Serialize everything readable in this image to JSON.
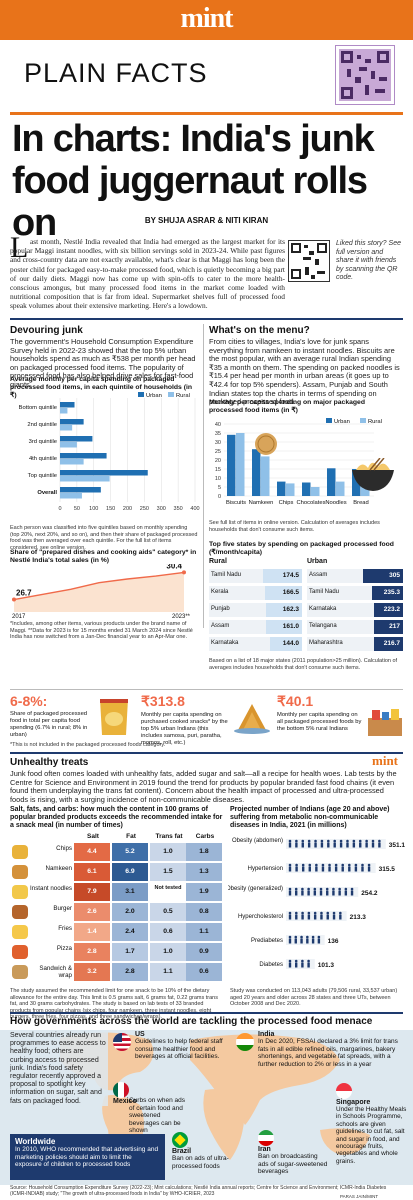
{
  "header": {
    "brand": "mint",
    "section": "PLAIN FACTS",
    "title": "In charts: India's junk food juggernaut rolls on",
    "byline": "BY SHUJA ASRAR & NITI KIRAN",
    "qr_note": "Liked this story? See full version and share it with friends by scanning the QR code.",
    "intro_dropcap": "L",
    "intro_rest": "ast month, Nestlé India revealed that India had emerged as the largest market for its popular Maggi instant noodles, with six billion servings sold in 2023-24. While past figures and cross-country data are not exactly available, what's clear is that Maggi has long been the poster child for packaged easy-to-make processed food, which is quietly becoming a big part of our daily diets. Maggi now has come up with spin-offs to cater to the more health-conscious amongus, but many processed food items in the market come loaded with nutritional composition that is far from ideal. Supermarket shelves full of processed food speak volumes about their extensive marketing. Here's a lowdown."
  },
  "colors": {
    "brand": "#e8731a",
    "pink": "#f06a4a",
    "navy": "#1e3a6e",
    "urban": "#1f6fb2",
    "rural": "#8fc0e8",
    "orange_bar": "#f7a530",
    "map_land": "#f4c9a0",
    "map_water": "#dde8ef"
  },
  "devouring": {
    "heading": "Devouring junk",
    "text": "The government's Household Consumption Expenditure Survey held in 2022-23 showed that the top 5% urban households spend as much as ₹538 per month per head on packaged processed food items. The popularity of processed food has also helped drive sales for fast-food giants.",
    "chart_title": "Average monthly per capita spending on packaged processed food items, in each quintile of households (in ₹)",
    "note": "Each person was classified into five quintiles based on monthly spending (top 20%, next 20%, and so on), and then their share of packaged processed food was then averaged over each quintile. For the full list of items considered, see online version."
  },
  "nestle": {
    "chart_title": "Share of \"prepared dishes and cooking aids\" category* in Nestlé India's total sales (in %)",
    "note": "*Includes, among other items, various products under the brand name of Maggi. **Data for 2023 is for 15 months ended 31 March 2024 since Nestlé India has now switched from a Jan-Dec financial year to an Apr-Mar one.",
    "x_start": "2017",
    "x_end": "2023**",
    "v_start": "26.7",
    "v_end": "30.4"
  },
  "menu": {
    "heading": "What's on the menu?",
    "text": "From cities to villages, India's love for junk spans everything from namkeen to instant noodles. Biscuits are the most popular, with an average rural Indian spending ₹35 a month on them. The spending on packed noodles is ₹15.4 per head per month in urban areas (it goes up to ₹42.4 for top 5% spenders). Assam, Punjab and South Indian states top the charts in terms of spending on packaged processed food.",
    "chart_title": "Monthly per capita spending on major packaged processed food items (in ₹)",
    "note": "See full list of items in online version. Calculation of averages includes households that don't consume such items."
  },
  "states": {
    "title": "Top five states by spending on packaged processed food (₹/month/capita)",
    "rural_label": "Rural",
    "urban_label": "Urban",
    "rural": [
      {
        "state": "Tamil Nadu",
        "value": "174.5"
      },
      {
        "state": "Kerala",
        "value": "166.5"
      },
      {
        "state": "Punjab",
        "value": "162.3"
      },
      {
        "state": "Assam",
        "value": "161.0"
      },
      {
        "state": "Karnataka",
        "value": "144.0"
      }
    ],
    "urban": [
      {
        "state": "Assam",
        "value": "305"
      },
      {
        "state": "Tamil Nadu",
        "value": "235.3"
      },
      {
        "state": "Karnataka",
        "value": "223.2"
      },
      {
        "state": "Telangana",
        "value": "217"
      },
      {
        "state": "Maharashtra",
        "value": "216.7"
      }
    ],
    "note": "Based on a list of 18 major states (2011 population>25 million). Calculation of averages includes households that don't consume such items."
  },
  "facts": [
    {
      "big": "6-8%:",
      "text": "Share of packaged processed food in total per capita food spending (6.7% in rural; 8% in urban)"
    },
    {
      "big": "₹313.8",
      "text": "Monthly per capita spending on purchased cooked snacks* by the top 5% urban Indians (this includes samosa, puri, paratha, momos, roll, etc.)"
    },
    {
      "big": "₹40.1",
      "text": "Monthly per capita spending on all packaged processed foods by the bottom 5% rural Indians"
    }
  ],
  "facts_note": "*This is not included in the packaged processed foods category.",
  "treats": {
    "heading": "Unhealthy treats",
    "brand": "mint",
    "text": "Junk food often comes loaded with unhealthy fats, added sugar and salt—all a recipe for health woes. Lab tests by the Centre for Science and Environment in 2019 found the trend for products by popular branded fast food chains (it even found them underplaying the trans fat content). Concern about the health impact of processed and ultra-processed foods is rising, with a surging incidence of non-communicable diseases."
  },
  "salt": {
    "title": "Salt, fats, and carbs: how much the content in 100 grams of popular branded products exceeds the recommended intake for a snack meal (in number of times)",
    "headers": [
      "Salt",
      "Fat",
      "Trans fat",
      "Carbs"
    ],
    "rows": [
      {
        "item": "Chips",
        "v": [
          "4.4",
          "5.2",
          "1.0",
          "1.8"
        ]
      },
      {
        "item": "Namkeen",
        "v": [
          "6.1",
          "6.9",
          "1.5",
          "1.3"
        ]
      },
      {
        "item": "Instant noodles",
        "v": [
          "7.9",
          "3.1",
          "Not tested",
          "1.9"
        ]
      },
      {
        "item": "Burger",
        "v": [
          "2.6",
          "2.0",
          "0.5",
          "0.8"
        ]
      },
      {
        "item": "Fries",
        "v": [
          "1.4",
          "2.4",
          "0.6",
          "1.1"
        ]
      },
      {
        "item": "Pizza",
        "v": [
          "2.8",
          "1.7",
          "1.0",
          "0.9"
        ]
      },
      {
        "item": "Sandwich & wrap",
        "v": [
          "3.2",
          "2.8",
          "1.1",
          "0.6"
        ]
      }
    ],
    "note": "The study assumed the recommended limit for one snack to be 10% of the dietary allowance for the entire day. This limit is 0.5 grams salt, 6 grams fat, 0.22 grams trans fat, and 30 grams carbohydrates. The study is based on lab tests of 33 branded products from popular chains (six chips, four namkeen, three instant noodles, eight burgers, three fries, four pizzas, and three sandwiches/wraps)."
  },
  "ncd": {
    "title": "Projected number of Indians (age 20 and above) suffering from metabolic non-communicable diseases in India, 2021 (in millions)",
    "note": "Study was conducted on 113,043 adults (79,506 rural, 33,537 urban) aged 20 years and older across 28 states and three UTs, between October 2008 and Dec 2020."
  },
  "world": {
    "heading": "How governments across the world are tackling the processed food menace",
    "intro": "Several countries already run programmes to ease access to healthy food; others are curbing access to processed junk. India's food safety regulator recently approved a proposal to spotlight key information on sugar, salt and fats on packaged food.",
    "countries": [
      {
        "name": "US",
        "text": "Guidelines to help federal staff consume healthier food and beverages at official facilities."
      },
      {
        "name": "India",
        "text": "In Dec 2020, FSSAI declared a 3% limit for trans fats in all edible refined oils, margarines, bakery shortenings, and vegetable fat spreads, with a further reduction to 2% or less in a year"
      },
      {
        "name": "Mexico",
        "text": "Curbs on when ads of certain food and sweetened beverages can be shown"
      },
      {
        "name": "Singapore",
        "text": "Under the Healthy Meals in Schools Programme, schools are given guidelines to cut fat, salt and sugar in food, and encourage fruits, vegetables and whole grains."
      },
      {
        "name": "Brazil",
        "text": "Ban on ads of ultra-processed foods"
      },
      {
        "name": "Iran",
        "text": "Ban on broadcasting ads of sugar-sweetened beverages"
      }
    ],
    "worldwide_label": "Worldwide",
    "worldwide_text": "In 2010, WHO recommended that advertising and marketing policies should aim to limit the exposure of children to processed foods"
  },
  "footer": {
    "source": "Source: Household Consumption Expenditure Survey (2022-23); Mint calculations; Nestlé India annual reports; Centre for Science and Environment; ICMR-India Diabetes (ICMR-INDIAB) study; \"The growth of ultra-processed foods in India\" by WHO-ICRIER, 2023",
    "credit": "PARAS JAIN/MINT"
  },
  "chart_data": [
    {
      "type": "bar",
      "orientation": "horizontal",
      "title": "Average monthly per capita spending on packaged processed food items, in each quintile of households (in ₹)",
      "categories": [
        "Bottom quintile",
        "2nd quintile",
        "3rd quintile",
        "4th quintile",
        "Top quintile",
        "Overall"
      ],
      "series": [
        {
          "name": "Urban",
          "values": [
            43,
            70,
            96,
            138,
            260,
            121
          ]
        },
        {
          "name": "Rural",
          "values": [
            22,
            36,
            50,
            70,
            147,
            65
          ]
        }
      ],
      "xlim": [
        0,
        400
      ],
      "xticks": [
        0,
        50,
        100,
        150,
        200,
        250,
        300,
        350,
        400
      ],
      "legend": "top-right"
    },
    {
      "type": "area",
      "title": "Share of \"prepared dishes and cooking aids\" category* in Nestlé India's total sales (in %)",
      "x": [
        "2017",
        "2018",
        "2019",
        "2020",
        "2021",
        "2022",
        "2023**"
      ],
      "values": [
        26.7,
        27.4,
        28.1,
        29.0,
        29.5,
        29.9,
        30.4
      ]
    },
    {
      "type": "bar",
      "title": "Monthly per capita spending on major packaged processed food items (in ₹)",
      "categories": [
        "Biscuits",
        "Namkeen",
        "Chips",
        "Chocolates",
        "Noodles",
        "Bread"
      ],
      "series": [
        {
          "name": "Urban",
          "values": [
            34,
            26,
            8,
            7.5,
            15.4,
            15
          ]
        },
        {
          "name": "Rural",
          "values": [
            35,
            22,
            7,
            5,
            8,
            5
          ]
        }
      ],
      "ylim": [
        0,
        40
      ],
      "yticks": [
        0,
        5,
        10,
        15,
        20,
        25,
        30,
        35,
        40
      ],
      "legend": "top-right"
    },
    {
      "type": "bar",
      "orientation": "horizontal",
      "title": "Top five states by spending on packaged processed food (₹/month/capita)",
      "groups": [
        {
          "name": "Rural",
          "categories": [
            "Tamil Nadu",
            "Kerala",
            "Punjab",
            "Assam",
            "Karnataka"
          ],
          "values": [
            174.5,
            166.5,
            162.3,
            161.0,
            144.0
          ]
        },
        {
          "name": "Urban",
          "categories": [
            "Assam",
            "Tamil Nadu",
            "Karnataka",
            "Telangana",
            "Maharashtra"
          ],
          "values": [
            305,
            235.3,
            223.2,
            217,
            216.7
          ]
        }
      ]
    },
    {
      "type": "table",
      "title": "Salt, fats, and carbs: how much the content in 100 grams of popular branded products exceeds the recommended intake for a snack meal (in number of times)",
      "columns": [
        "Salt",
        "Fat",
        "Trans fat",
        "Carbs"
      ],
      "rows": [
        "Chips",
        "Namkeen",
        "Instant noodles",
        "Burger",
        "Fries",
        "Pizza",
        "Sandwich & wrap"
      ]
    },
    {
      "type": "bar",
      "orientation": "horizontal",
      "title": "Projected number of Indians (age 20 and above) suffering from metabolic non-communicable diseases in India, 2021 (in millions)",
      "categories": [
        "Obesity (abdomen)",
        "Hypertension",
        "Obesity (generalized)",
        "Hypercholesterol",
        "Prediabetes",
        "Diabetes"
      ],
      "values": [
        351.1,
        315.5,
        254.2,
        213.3,
        136,
        101.3
      ],
      "labels": [
        "351.1",
        "315.5",
        "254.2",
        "213.3",
        "136",
        "101.3"
      ]
    }
  ]
}
